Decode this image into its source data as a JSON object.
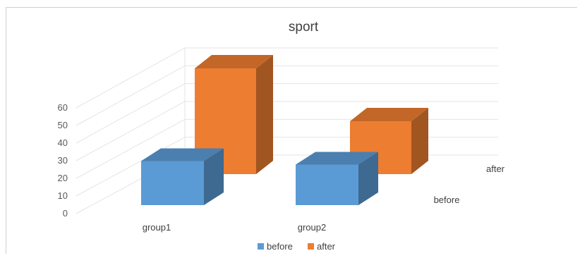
{
  "chart_data": {
    "type": "bar",
    "title": "sport",
    "categories": [
      "group1",
      "group2"
    ],
    "series": [
      {
        "name": "before",
        "values": [
          25,
          23
        ]
      },
      {
        "name": "after",
        "values": [
          60,
          30
        ]
      }
    ],
    "y_ticks": [
      "0",
      "10",
      "20",
      "30",
      "40",
      "50",
      "60"
    ],
    "depth_labels": [
      "before",
      "after"
    ],
    "ylim": [
      0,
      60
    ],
    "legend_position": "bottom",
    "grid": true,
    "colors": {
      "before": "#5b9bd5",
      "after": "#ed7d31"
    }
  }
}
